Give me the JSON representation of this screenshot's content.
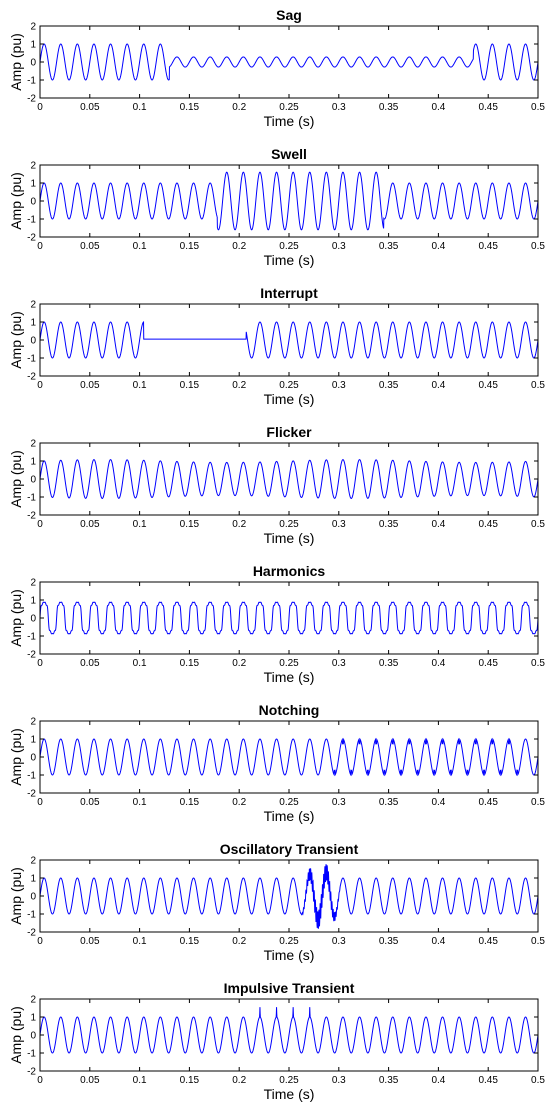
{
  "chart_data": [
    {
      "type": "line",
      "title": "Sag",
      "xlabel": "Time (s)",
      "ylabel": "Amp (pu)",
      "xlim": [
        0,
        0.5
      ],
      "ylim": [
        -2,
        2
      ],
      "xticks": [
        "0",
        "0.05",
        "0.1",
        "0.15",
        "0.2",
        "0.25",
        "0.3",
        "0.35",
        "0.4",
        "0.45",
        "0.5"
      ],
      "yticks": [
        "-2",
        "-1",
        "0",
        "1",
        "2"
      ],
      "signal": {
        "kind": "sag",
        "frequency_hz": 60,
        "amplitude": 1.0,
        "start": 0.13,
        "end": 0.435,
        "level": 0.28
      }
    },
    {
      "type": "line",
      "title": "Swell",
      "xlabel": "Time (s)",
      "ylabel": "Amp (pu)",
      "xlim": [
        0,
        0.5
      ],
      "ylim": [
        -2,
        2
      ],
      "xticks": [
        "0",
        "0.05",
        "0.1",
        "0.15",
        "0.2",
        "0.25",
        "0.3",
        "0.35",
        "0.4",
        "0.45",
        "0.5"
      ],
      "yticks": [
        "-2",
        "-1",
        "0",
        "1",
        "2"
      ],
      "signal": {
        "kind": "swell",
        "frequency_hz": 60,
        "amplitude": 1.0,
        "start": 0.178,
        "end": 0.345,
        "level": 1.6
      }
    },
    {
      "type": "line",
      "title": "Interrupt",
      "xlabel": "Time (s)",
      "ylabel": "Amp (pu)",
      "xlim": [
        0,
        0.5
      ],
      "ylim": [
        -2,
        2
      ],
      "xticks": [
        "0",
        "0.05",
        "0.1",
        "0.15",
        "0.2",
        "0.25",
        "0.3",
        "0.35",
        "0.4",
        "0.45",
        "0.5"
      ],
      "yticks": [
        "-2",
        "-1",
        "0",
        "1",
        "2"
      ],
      "signal": {
        "kind": "interrupt",
        "frequency_hz": 60,
        "amplitude": 1.0,
        "start": 0.104,
        "end": 0.207,
        "level": 0.05
      }
    },
    {
      "type": "line",
      "title": "Flicker",
      "xlabel": "Time (s)",
      "ylabel": "Amp (pu)",
      "xlim": [
        0,
        0.5
      ],
      "ylim": [
        -2,
        2
      ],
      "xticks": [
        "0",
        "0.05",
        "0.1",
        "0.15",
        "0.2",
        "0.25",
        "0.3",
        "0.35",
        "0.4",
        "0.45",
        "0.5"
      ],
      "yticks": [
        "-2",
        "-1",
        "0",
        "1",
        "2"
      ],
      "signal": {
        "kind": "flicker",
        "frequency_hz": 60,
        "amplitude": 1.0,
        "modulation_depth": 0.08,
        "modulation_hz": 4
      }
    },
    {
      "type": "line",
      "title": "Harmonics",
      "xlabel": "Time (s)",
      "ylabel": "Amp (pu)",
      "xlim": [
        0,
        0.5
      ],
      "ylim": [
        -2,
        2
      ],
      "xticks": [
        "0",
        "0.05",
        "0.1",
        "0.15",
        "0.2",
        "0.25",
        "0.3",
        "0.35",
        "0.4",
        "0.45",
        "0.5"
      ],
      "yticks": [
        "-2",
        "-1",
        "0",
        "1",
        "2"
      ],
      "signal": {
        "kind": "harmonics",
        "frequency_hz": 60,
        "amplitude": 1.0,
        "h3": 0.18,
        "h5": 0.1,
        "h7": 0.06
      }
    },
    {
      "type": "line",
      "title": "Notching",
      "xlabel": "Time (s)",
      "ylabel": "Amp (pu)",
      "xlim": [
        0,
        0.5
      ],
      "ylim": [
        -2,
        2
      ],
      "xticks": [
        "0",
        "0.05",
        "0.1",
        "0.15",
        "0.2",
        "0.25",
        "0.3",
        "0.35",
        "0.4",
        "0.45",
        "0.5"
      ],
      "yticks": [
        "-2",
        "-1",
        "0",
        "1",
        "2"
      ],
      "signal": {
        "kind": "notching",
        "frequency_hz": 60,
        "amplitude": 1.0,
        "start": 0.29,
        "end": 0.48
      }
    },
    {
      "type": "line",
      "title": "Oscillatory Transient",
      "xlabel": "Time (s)",
      "ylabel": "Amp (pu)",
      "xlim": [
        0,
        0.5
      ],
      "ylim": [
        -2,
        2
      ],
      "xticks": [
        "0",
        "0.05",
        "0.1",
        "0.15",
        "0.2",
        "0.25",
        "0.3",
        "0.35",
        "0.4",
        "0.45",
        "0.5"
      ],
      "yticks": [
        "-2",
        "-1",
        "0",
        "1",
        "2"
      ],
      "signal": {
        "kind": "oscillatory",
        "frequency_hz": 60,
        "amplitude": 1.0,
        "start": 0.262,
        "end": 0.302,
        "peak": 0.55
      }
    },
    {
      "type": "line",
      "title": "Impulsive Transient",
      "xlabel": "Time (s)",
      "ylabel": "Amp (pu)",
      "xlim": [
        0,
        0.5
      ],
      "ylim": [
        -2,
        2
      ],
      "xticks": [
        "0",
        "0.05",
        "0.1",
        "0.15",
        "0.2",
        "0.25",
        "0.3",
        "0.35",
        "0.4",
        "0.45",
        "0.5"
      ],
      "yticks": [
        "-2",
        "-1",
        "0",
        "1",
        "2"
      ],
      "signal": {
        "kind": "impulsive",
        "frequency_hz": 60,
        "amplitude": 1.0,
        "start": 0.215,
        "end": 0.285,
        "peak": 1.55
      }
    }
  ],
  "colors": {
    "line": "#0000ff",
    "axis": "#000000",
    "background": "#ffffff"
  }
}
